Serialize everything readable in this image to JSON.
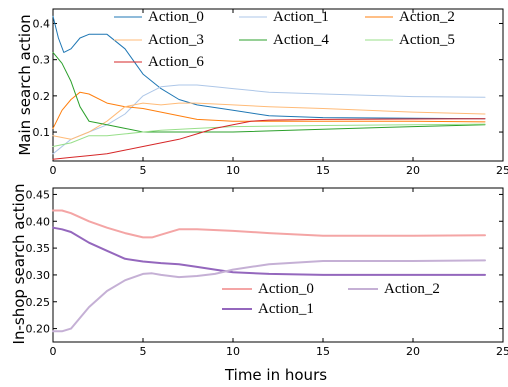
{
  "xlabel": "Time in hours",
  "chart_data": [
    {
      "type": "line",
      "title": "",
      "xlabel": "",
      "ylabel": "Main search action",
      "xlim": [
        0,
        25
      ],
      "ylim": [
        0.02,
        0.44
      ],
      "xticks": [
        "0",
        "5",
        "10",
        "15",
        "20",
        "25"
      ],
      "yticks": [
        "0.1",
        "0.2",
        "0.3",
        "0.4"
      ],
      "legend_placement": "top",
      "grid": false,
      "series": [
        {
          "name": "Action_0",
          "color": "#1f77b4",
          "x": [
            0,
            0.3,
            0.6,
            1,
            1.5,
            2,
            3,
            4,
            5,
            6,
            7,
            8,
            10,
            12,
            15,
            20,
            24
          ],
          "y": [
            0.42,
            0.36,
            0.32,
            0.33,
            0.36,
            0.37,
            0.37,
            0.33,
            0.26,
            0.22,
            0.19,
            0.175,
            0.16,
            0.145,
            0.14,
            0.138,
            0.137
          ]
        },
        {
          "name": "Action_1",
          "color": "#aec7e8",
          "x": [
            0,
            1,
            2,
            3,
            4,
            5,
            6,
            7,
            8,
            9,
            10,
            12,
            15,
            20,
            24
          ],
          "y": [
            0.04,
            0.08,
            0.1,
            0.12,
            0.15,
            0.2,
            0.225,
            0.23,
            0.23,
            0.225,
            0.22,
            0.21,
            0.205,
            0.198,
            0.196
          ]
        },
        {
          "name": "Action_2",
          "color": "#ff7f0e",
          "x": [
            0,
            0.5,
            1,
            1.5,
            2,
            3,
            4,
            5,
            6,
            7,
            8,
            10,
            12,
            15,
            20,
            24
          ],
          "y": [
            0.11,
            0.16,
            0.19,
            0.21,
            0.205,
            0.18,
            0.17,
            0.165,
            0.155,
            0.145,
            0.135,
            0.13,
            0.13,
            0.13,
            0.13,
            0.128
          ]
        },
        {
          "name": "Action_3",
          "color": "#ffbb78",
          "x": [
            0,
            1,
            2,
            3,
            4,
            5,
            6,
            7,
            8,
            10,
            12,
            15,
            20,
            24
          ],
          "y": [
            0.09,
            0.08,
            0.1,
            0.13,
            0.17,
            0.18,
            0.175,
            0.18,
            0.18,
            0.175,
            0.17,
            0.165,
            0.155,
            0.15
          ]
        },
        {
          "name": "Action_4",
          "color": "#2ca02c",
          "x": [
            0,
            0.5,
            1,
            1.5,
            2,
            3,
            4,
            5,
            6,
            8,
            10,
            15,
            20,
            24
          ],
          "y": [
            0.32,
            0.29,
            0.24,
            0.17,
            0.13,
            0.12,
            0.11,
            0.1,
            0.1,
            0.1,
            0.1,
            0.108,
            0.115,
            0.12
          ]
        },
        {
          "name": "Action_5",
          "color": "#98df8a",
          "x": [
            0,
            1,
            2,
            3,
            4,
            5,
            6,
            8,
            10,
            15,
            20,
            24
          ],
          "y": [
            0.06,
            0.07,
            0.09,
            0.09,
            0.095,
            0.1,
            0.105,
            0.11,
            0.115,
            0.118,
            0.12,
            0.122
          ]
        },
        {
          "name": "Action_6",
          "color": "#d62728",
          "x": [
            0,
            1,
            2,
            3,
            4,
            5,
            6,
            7,
            8,
            9,
            10,
            11,
            12,
            15,
            20,
            24
          ],
          "y": [
            0.025,
            0.03,
            0.035,
            0.04,
            0.05,
            0.06,
            0.07,
            0.08,
            0.095,
            0.11,
            0.12,
            0.13,
            0.133,
            0.135,
            0.136,
            0.137
          ]
        }
      ]
    },
    {
      "type": "line",
      "title": "",
      "xlabel": "",
      "ylabel": "In-shop search action",
      "xlim": [
        0,
        25
      ],
      "ylim": [
        0.175,
        0.462
      ],
      "xticks": [
        "0",
        "5",
        "10",
        "15",
        "20",
        "25"
      ],
      "yticks": [
        "0.20",
        "0.25",
        "0.30",
        "0.35",
        "0.40",
        "0.45"
      ],
      "legend_placement": "lower center",
      "grid": false,
      "series": [
        {
          "name": "Action_0",
          "color": "#f4a5a5",
          "x": [
            0,
            0.5,
            1,
            2,
            3,
            4,
            5,
            5.5,
            6,
            7,
            8,
            10,
            12,
            15,
            20,
            24
          ],
          "y": [
            0.42,
            0.42,
            0.415,
            0.4,
            0.388,
            0.378,
            0.37,
            0.37,
            0.375,
            0.385,
            0.385,
            0.382,
            0.378,
            0.373,
            0.373,
            0.374
          ]
        },
        {
          "name": "Action_1",
          "color": "#9467bd",
          "x": [
            0,
            0.5,
            1,
            2,
            3,
            4,
            5,
            6,
            7,
            8,
            9,
            10,
            12,
            15,
            20,
            24
          ],
          "y": [
            0.388,
            0.385,
            0.38,
            0.36,
            0.345,
            0.33,
            0.325,
            0.322,
            0.32,
            0.315,
            0.31,
            0.305,
            0.302,
            0.3,
            0.3,
            0.3
          ]
        },
        {
          "name": "Action_2",
          "color": "#c5b0d5",
          "x": [
            0,
            0.5,
            1,
            2,
            3,
            4,
            5,
            5.5,
            6,
            7,
            8,
            9,
            10,
            12,
            15,
            20,
            24
          ],
          "y": [
            0.195,
            0.195,
            0.2,
            0.24,
            0.27,
            0.29,
            0.302,
            0.303,
            0.3,
            0.296,
            0.298,
            0.302,
            0.31,
            0.32,
            0.326,
            0.326,
            0.327
          ]
        }
      ]
    }
  ]
}
